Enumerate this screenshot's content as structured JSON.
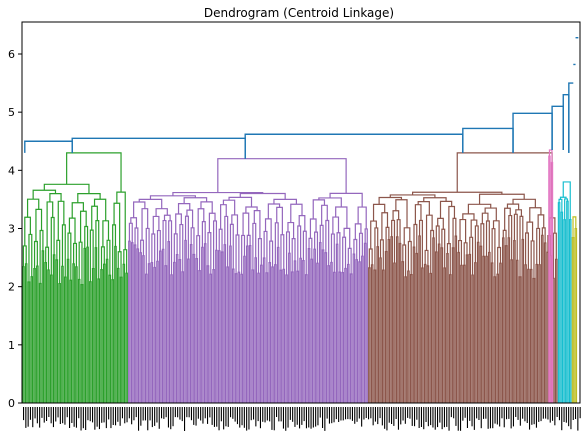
{
  "chart_data": {
    "type": "dendrogram",
    "title": "Dendrogram (Centroid Linkage)",
    "xlabel": "",
    "ylabel": "",
    "ylim": [
      0,
      6.55
    ],
    "xlim": [
      0,
      1
    ],
    "yticks": [
      0,
      1,
      2,
      3,
      4,
      5,
      6
    ],
    "grid": false,
    "leaf_labels_legible": false,
    "clusters": [
      {
        "color": "#2ca02c",
        "x_range": [
          0.0,
          0.19
        ],
        "leaf_heights": [
          2.0,
          2.7
        ],
        "internal_max": 3.9,
        "root_height": 4.3
      },
      {
        "color": "#9467bd",
        "x_range": [
          0.19,
          0.62
        ],
        "leaf_heights": [
          2.2,
          2.8
        ],
        "internal_max": 3.7,
        "root_height": 4.2
      },
      {
        "color": "#8c564b",
        "x_range": [
          0.62,
          0.96
        ],
        "leaf_heights": [
          2.1,
          2.9
        ],
        "internal_max": 3.7,
        "root_height": 4.3
      },
      {
        "color": "#e377c2",
        "x_range": [
          0.943,
          0.952
        ],
        "leaf_heights": [
          3.8,
          4.3
        ],
        "internal_max": 4.3,
        "root_height": 4.35
      },
      {
        "color": "#17becf",
        "x_range": [
          0.96,
          0.985
        ],
        "leaf_heights": [
          3.0,
          3.6
        ],
        "internal_max": 3.6,
        "root_height": 3.8
      },
      {
        "color": "#bcbd22",
        "x_range": [
          0.985,
          0.995
        ],
        "leaf_heights": [
          2.8,
          3.2
        ],
        "internal_max": 3.2,
        "root_height": 3.2
      }
    ],
    "above_threshold_color": "#1f77b4",
    "top_merges": [
      {
        "height": 4.5,
        "left_x": 0.005,
        "right_x": 0.09
      },
      {
        "height": 4.55,
        "left_x": 0.09,
        "right_x": 0.4
      },
      {
        "height": 4.62,
        "left_x": 0.4,
        "right_x": 0.79
      },
      {
        "height": 4.72,
        "left_x": 0.79,
        "right_x": 0.88
      },
      {
        "height": 4.98,
        "left_x": 0.88,
        "right_x": 0.95
      },
      {
        "height": 5.1,
        "left_x": 0.95,
        "right_x": 0.97
      },
      {
        "height": 5.3,
        "left_x": 0.97,
        "right_x": 0.98
      },
      {
        "height": 5.5,
        "left_x": 0.98,
        "right_x": 0.988
      },
      {
        "height": 5.82,
        "left_x": 0.988,
        "right_x": 0.992
      },
      {
        "height": 6.28,
        "left_x": 0.992,
        "right_x": 0.997
      }
    ]
  }
}
